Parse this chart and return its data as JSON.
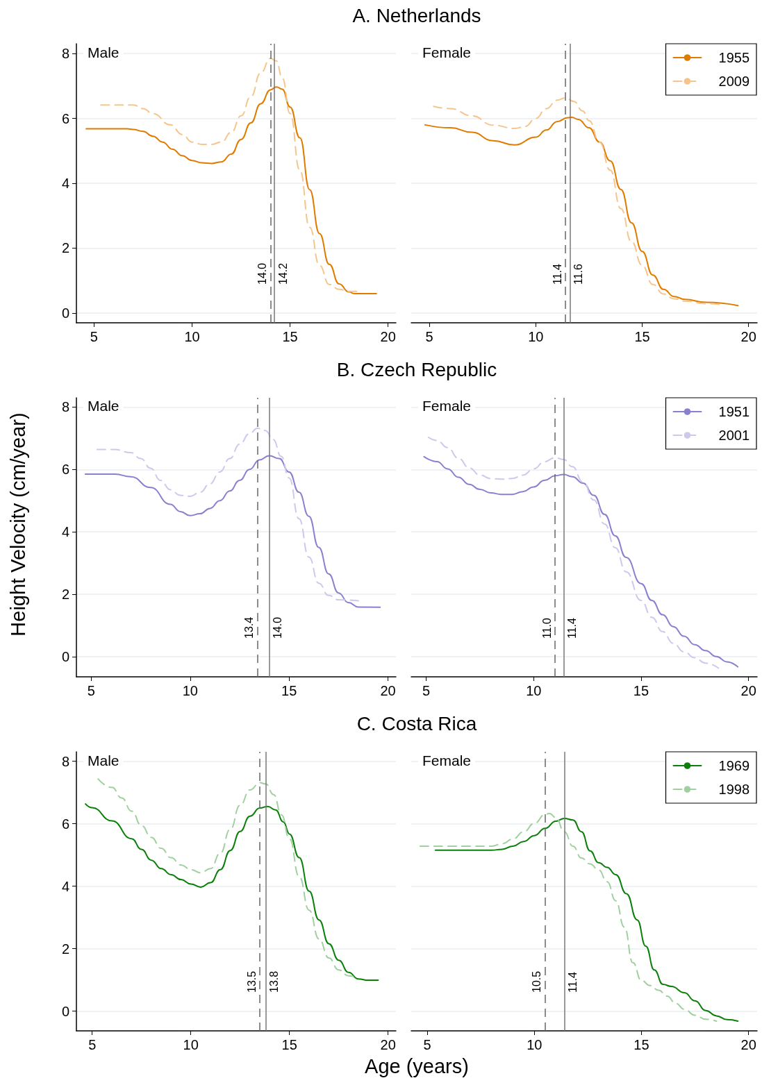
{
  "chart_data": [
    {
      "type": "line",
      "title": "A. Netherlands",
      "subtitle": "Male",
      "xlim": [
        4.1,
        20.4
      ],
      "xticks": [
        5,
        10,
        15,
        20
      ],
      "ylim": [
        -0.3,
        8.3
      ],
      "yticks": [
        0,
        2,
        4,
        6,
        8
      ],
      "grid": "y",
      "legend": false,
      "marker": "none",
      "series": [
        {
          "color": "#e07b00",
          "line_style": "solid",
          "x": [
            4.6,
            5,
            6,
            6.7,
            7,
            7.5,
            8,
            8.5,
            9,
            9.5,
            10,
            10.5,
            11,
            11.5,
            12,
            12.5,
            13,
            13.5,
            14,
            14.3,
            14.6,
            15,
            15.5,
            16,
            16.5,
            17,
            17.5,
            18,
            18.3,
            19.4
          ],
          "values": [
            5.68,
            5.68,
            5.68,
            5.68,
            5.66,
            5.6,
            5.45,
            5.27,
            5.05,
            4.85,
            4.7,
            4.63,
            4.61,
            4.66,
            4.9,
            5.35,
            5.86,
            6.45,
            6.88,
            6.97,
            6.9,
            6.35,
            5.4,
            3.8,
            2.45,
            1.5,
            0.9,
            0.65,
            0.6,
            0.6
          ]
        },
        {
          "color": "#f5c58c",
          "line_style": "dashed",
          "x": [
            5.35,
            6,
            7,
            7.5,
            8,
            8.9,
            9.5,
            10,
            10.5,
            11,
            11.5,
            12,
            12.5,
            13,
            13.5,
            14,
            14.3,
            14.6,
            15,
            15.5,
            16,
            16.5,
            17,
            17.5,
            18,
            18.4
          ],
          "values": [
            6.41,
            6.41,
            6.41,
            6.3,
            6.15,
            5.8,
            5.5,
            5.27,
            5.2,
            5.2,
            5.27,
            5.57,
            6.08,
            6.67,
            7.4,
            7.85,
            7.77,
            7.25,
            6.15,
            4.4,
            2.64,
            1.47,
            0.88,
            0.73,
            0.67,
            0.67
          ]
        }
      ],
      "ref_lines": [
        {
          "axis": "x",
          "value": 14.0,
          "label": "14.0",
          "color": "#666666",
          "line_style": "dashed"
        },
        {
          "axis": "x",
          "value": 14.2,
          "label": "14.2",
          "color": "#777777",
          "line_style": "solid"
        }
      ]
    },
    {
      "type": "line",
      "subtitle": "Female",
      "xlim": [
        4.15,
        20.4
      ],
      "xticks": [
        5,
        10,
        15,
        20
      ],
      "ylim": [
        -0.3,
        8.3
      ],
      "yticks": [
        0,
        2,
        4,
        6,
        8
      ],
      "grid": "y",
      "legend": "top right",
      "marker": "none",
      "tick_labels": "x",
      "series": [
        {
          "name": "1955",
          "color": "#e07b00",
          "line_style": "solid",
          "x": [
            4.8,
            6,
            7,
            8,
            9,
            10,
            10.5,
            11,
            11.5,
            11.7,
            12,
            12.5,
            13,
            13.5,
            14,
            14.5,
            15,
            15.5,
            16,
            16.5,
            17,
            18,
            19.5
          ],
          "values": [
            5.8,
            5.71,
            5.57,
            5.31,
            5.18,
            5.42,
            5.64,
            5.9,
            6.02,
            6.03,
            5.97,
            5.71,
            5.27,
            4.69,
            3.81,
            2.78,
            1.9,
            1.17,
            0.73,
            0.51,
            0.42,
            0.33,
            0.23
          ]
        },
        {
          "name": "2009",
          "color": "#f5c58c",
          "line_style": "dashed",
          "x": [
            5.2,
            6,
            7,
            8,
            9,
            9.5,
            10,
            10.5,
            11,
            11.4,
            11.8,
            12.2,
            12.5,
            13,
            13.5,
            14,
            14.5,
            15,
            15.5,
            16,
            16.5,
            17,
            18,
            18.7
          ],
          "values": [
            6.37,
            6.3,
            6.08,
            5.79,
            5.69,
            5.75,
            6.0,
            6.3,
            6.56,
            6.63,
            6.52,
            6.23,
            5.93,
            5.27,
            4.4,
            3.22,
            2.2,
            1.47,
            0.88,
            0.59,
            0.44,
            0.37,
            0.29,
            0.26
          ]
        }
      ],
      "ref_lines": [
        {
          "axis": "x",
          "value": 11.4,
          "label": "11.4",
          "color": "#666666",
          "line_style": "dashed"
        },
        {
          "axis": "x",
          "value": 11.6,
          "label": "11.6",
          "color": "#777777",
          "line_style": "solid"
        }
      ]
    },
    {
      "type": "line",
      "title": "B. Czech Republic",
      "subtitle": "Male",
      "ylabel": "Height Velocity (cm/year)",
      "xlim": [
        4.25,
        20.4
      ],
      "xticks": [
        5,
        10,
        15,
        20
      ],
      "ylim": [
        -0.65,
        8.3
      ],
      "yticks": [
        0,
        2,
        4,
        6,
        8
      ],
      "grid": "y",
      "legend": false,
      "marker": "none",
      "series": [
        {
          "color": "#8a80d0",
          "line_style": "solid",
          "x": [
            4.7,
            5,
            6,
            6.2,
            7,
            8,
            9,
            9.5,
            10,
            10.5,
            11,
            11.5,
            12,
            12.5,
            13,
            13.5,
            14,
            14.5,
            15,
            15.5,
            16,
            16.5,
            17,
            17.5,
            18,
            18.5,
            19.6
          ],
          "values": [
            5.85,
            5.85,
            5.85,
            5.85,
            5.77,
            5.42,
            4.88,
            4.65,
            4.52,
            4.58,
            4.75,
            5.0,
            5.31,
            5.65,
            6.0,
            6.31,
            6.44,
            6.35,
            5.92,
            5.27,
            4.5,
            3.5,
            2.65,
            2.04,
            1.73,
            1.59,
            1.58
          ]
        },
        {
          "color": "#cdc8ec",
          "line_style": "dashed",
          "x": [
            5.3,
            6,
            6.2,
            7,
            7.5,
            8,
            8.5,
            9,
            9.5,
            10,
            10.5,
            11,
            11.5,
            12,
            12.5,
            13,
            13.4,
            13.8,
            14.2,
            14.6,
            15,
            15.5,
            16,
            16.5,
            17,
            17.5,
            18.5
          ],
          "values": [
            6.64,
            6.64,
            6.64,
            6.54,
            6.35,
            6.04,
            5.65,
            5.35,
            5.17,
            5.14,
            5.27,
            5.54,
            5.92,
            6.35,
            6.81,
            7.15,
            7.32,
            7.25,
            6.96,
            6.42,
            5.73,
            4.42,
            3.19,
            2.35,
            1.96,
            1.82,
            1.79
          ]
        }
      ],
      "ref_lines": [
        {
          "axis": "x",
          "value": 13.4,
          "label": "13.4",
          "color": "#666666",
          "line_style": "dashed"
        },
        {
          "axis": "x",
          "value": 14.0,
          "label": "14.0",
          "color": "#777777",
          "line_style": "solid"
        }
      ]
    },
    {
      "type": "line",
      "subtitle": "Female",
      "xlim": [
        4.3,
        20.4
      ],
      "xticks": [
        5,
        10,
        15,
        20
      ],
      "ylim": [
        -0.65,
        8.3
      ],
      "yticks": [
        0,
        2,
        4,
        6,
        8
      ],
      "grid": "y",
      "legend": "top right",
      "marker": "none",
      "tick_labels": "x",
      "series": [
        {
          "name": "1951",
          "color": "#8a80d0",
          "line_style": "solid",
          "x": [
            4.9,
            5.5,
            6,
            6.5,
            7,
            7.5,
            8,
            8.5,
            9,
            9.5,
            10,
            10.5,
            11,
            11.4,
            11.8,
            12.3,
            12.8,
            13.3,
            13.8,
            14.3,
            15,
            15.5,
            16,
            16.5,
            17,
            17.5,
            18,
            18.5,
            19,
            19.5
          ],
          "values": [
            6.41,
            6.25,
            6.02,
            5.75,
            5.52,
            5.36,
            5.25,
            5.2,
            5.2,
            5.29,
            5.44,
            5.65,
            5.8,
            5.84,
            5.77,
            5.56,
            5.17,
            4.56,
            3.87,
            3.18,
            2.34,
            1.8,
            1.34,
            0.96,
            0.65,
            0.38,
            0.19,
            0.0,
            -0.17,
            -0.33
          ]
        },
        {
          "name": "2001",
          "color": "#cdc8ec",
          "line_style": "dashed",
          "x": [
            5.1,
            5.5,
            6,
            6.5,
            7,
            7.5,
            8,
            8.5,
            9,
            9.5,
            10,
            10.5,
            11,
            11.4,
            11.8,
            12.3,
            12.8,
            13.3,
            13.8,
            14.3,
            15,
            15.5,
            16,
            16.5,
            17,
            17.5,
            18,
            18.6
          ],
          "values": [
            7.03,
            6.93,
            6.7,
            6.36,
            6.05,
            5.82,
            5.71,
            5.69,
            5.71,
            5.82,
            6.02,
            6.25,
            6.38,
            6.32,
            6.09,
            5.59,
            5.02,
            4.25,
            3.49,
            2.72,
            1.8,
            1.26,
            0.8,
            0.42,
            0.15,
            -0.04,
            -0.21,
            -0.37
          ]
        }
      ],
      "ref_lines": [
        {
          "axis": "x",
          "value": 11.0,
          "label": "11.0",
          "color": "#666666",
          "line_style": "dashed"
        },
        {
          "axis": "x",
          "value": 11.4,
          "label": "11.4",
          "color": "#777777",
          "line_style": "solid"
        }
      ]
    },
    {
      "type": "line",
      "title": "C. Costa Rica",
      "subtitle": "Male",
      "xlabel": "Age (years)",
      "xlim": [
        4.2,
        20.4
      ],
      "xticks": [
        5,
        10,
        15,
        20
      ],
      "ylim": [
        -0.63,
        8.3
      ],
      "yticks": [
        0,
        2,
        4,
        6,
        8
      ],
      "grid": "y",
      "legend": false,
      "marker": "none",
      "series": [
        {
          "color": "#0a800a",
          "line_style": "solid",
          "x": [
            4.66,
            5,
            6,
            7,
            7.5,
            8,
            8.5,
            9,
            9.5,
            10,
            10.5,
            11,
            11.5,
            12,
            12.5,
            13,
            13.5,
            13.9,
            14.3,
            14.7,
            15,
            15.5,
            16,
            16.5,
            17,
            17.5,
            18,
            18.5,
            19,
            19.5
          ],
          "values": [
            6.63,
            6.51,
            6.09,
            5.52,
            5.18,
            4.83,
            4.56,
            4.37,
            4.21,
            4.07,
            3.97,
            4.11,
            4.53,
            5.14,
            5.75,
            6.24,
            6.5,
            6.55,
            6.44,
            6.05,
            5.67,
            4.91,
            3.84,
            2.92,
            2.16,
            1.63,
            1.24,
            1.03,
            0.99,
            0.99
          ]
        },
        {
          "color": "#a0d0a0",
          "line_style": "dashed",
          "x": [
            5.3,
            6,
            6.5,
            7,
            7.5,
            8,
            8.5,
            9,
            9.5,
            10,
            10.5,
            11,
            11.5,
            12,
            12.5,
            13,
            13.5,
            13.8,
            14.2,
            14.6,
            15,
            15.5,
            16,
            16.5,
            17,
            17.5,
            18,
            18.4
          ],
          "values": [
            7.43,
            7.16,
            6.82,
            6.4,
            5.94,
            5.56,
            5.21,
            4.91,
            4.68,
            4.53,
            4.43,
            4.56,
            5.06,
            5.82,
            6.59,
            7.08,
            7.31,
            7.27,
            6.93,
            6.28,
            5.52,
            4.3,
            3.23,
            2.31,
            1.7,
            1.32,
            1.13,
            1.08
          ]
        }
      ],
      "ref_lines": [
        {
          "axis": "x",
          "value": 13.5,
          "label": "13.5",
          "color": "#666666",
          "line_style": "dashed"
        },
        {
          "axis": "x",
          "value": 13.8,
          "label": "13.8",
          "color": "#777777",
          "line_style": "solid"
        }
      ]
    },
    {
      "type": "line",
      "subtitle": "Female",
      "xlim": [
        4.25,
        20.4
      ],
      "xticks": [
        5,
        10,
        15,
        20
      ],
      "ylim": [
        -0.63,
        8.3
      ],
      "yticks": [
        0,
        2,
        4,
        6,
        8
      ],
      "grid": "y",
      "legend": "top right",
      "marker": "none",
      "tick_labels": "x",
      "series": [
        {
          "name": "1969",
          "color": "#0a800a",
          "line_style": "solid",
          "x": [
            5.38,
            6,
            7,
            8,
            8.5,
            9,
            9.5,
            10,
            10.5,
            11,
            11.4,
            11.8,
            12.2,
            12.6,
            13,
            13.4,
            13.8,
            14.3,
            14.8,
            15.2,
            15.6,
            16,
            16.4,
            17,
            17.5,
            18,
            18.5,
            19,
            19.5
          ],
          "values": [
            5.15,
            5.15,
            5.15,
            5.15,
            5.18,
            5.28,
            5.43,
            5.62,
            5.85,
            6.08,
            6.17,
            6.12,
            5.74,
            5.13,
            4.75,
            4.6,
            4.37,
            3.76,
            2.92,
            2.08,
            1.32,
            0.86,
            0.79,
            0.59,
            0.33,
            0.02,
            -0.15,
            -0.27,
            -0.32
          ]
        },
        {
          "name": "1998",
          "color": "#a0d0a0",
          "line_style": "dashed",
          "x": [
            4.67,
            6,
            7,
            8,
            8.5,
            9,
            9.5,
            10,
            10.5,
            10.7,
            11,
            11.4,
            11.8,
            12.2,
            12.6,
            13,
            13.4,
            13.8,
            14.2,
            14.6,
            15,
            15.4,
            15.8,
            16.2,
            16.6,
            17,
            17.5,
            18,
            18.5
          ],
          "values": [
            5.28,
            5.28,
            5.28,
            5.28,
            5.36,
            5.51,
            5.74,
            6.01,
            6.29,
            6.33,
            6.2,
            5.74,
            5.28,
            4.9,
            4.71,
            4.52,
            4.14,
            3.53,
            2.69,
            1.55,
            0.98,
            0.82,
            0.67,
            0.48,
            0.25,
            0.06,
            -0.13,
            -0.26,
            -0.32
          ]
        }
      ],
      "ref_lines": [
        {
          "axis": "x",
          "value": 10.5,
          "label": "10.5",
          "color": "#666666",
          "line_style": "dashed"
        },
        {
          "axis": "x",
          "value": 11.4,
          "label": "11.4",
          "color": "#777777",
          "line_style": "solid"
        }
      ]
    }
  ]
}
